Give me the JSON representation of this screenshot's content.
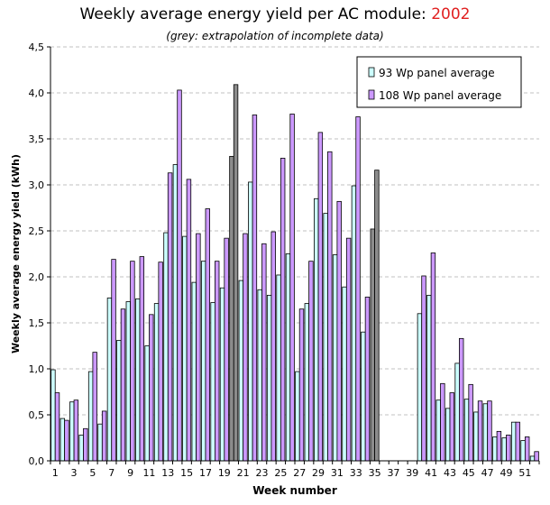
{
  "chart_data": {
    "type": "bar",
    "title": "Weekly average energy yield per AC module:",
    "title_year": "2002",
    "subtitle": "(grey: extrapolation of incomplete data)",
    "xlabel": "Week number",
    "ylabel": "Weekly average energy yield (kWh)",
    "ylim": [
      0,
      4.5
    ],
    "yticks": [
      "0,0",
      "0,5",
      "1,0",
      "1,5",
      "2,0",
      "2,5",
      "3,0",
      "3,5",
      "4,0",
      "4,5"
    ],
    "grid": "horizontal dashed",
    "legend_position": "top-right",
    "categories": [
      1,
      2,
      3,
      4,
      5,
      6,
      7,
      8,
      9,
      10,
      11,
      12,
      13,
      14,
      15,
      16,
      17,
      18,
      19,
      20,
      21,
      22,
      23,
      24,
      25,
      26,
      27,
      28,
      29,
      30,
      31,
      32,
      33,
      34,
      35,
      36,
      37,
      38,
      39,
      40,
      41,
      42,
      43,
      44,
      45,
      46,
      47,
      48,
      49,
      50,
      51,
      52
    ],
    "xtick_labels": [
      1,
      3,
      5,
      7,
      9,
      11,
      13,
      15,
      17,
      19,
      21,
      23,
      25,
      27,
      29,
      31,
      33,
      35,
      37,
      39,
      41,
      43,
      45,
      47,
      49,
      51
    ],
    "extrapolated_weeks": [
      20,
      35
    ],
    "colors": {
      "series1": "#ccffff",
      "series2": "#cc99ff",
      "extrapolated": "#8c8c8c",
      "title_year": "#e02020"
    },
    "series": [
      {
        "name": "93 Wp panel average",
        "values": [
          0.99,
          0.46,
          0.64,
          0.28,
          0.97,
          0.4,
          1.77,
          1.31,
          1.73,
          1.76,
          1.25,
          1.71,
          2.48,
          3.22,
          2.44,
          1.94,
          2.17,
          1.72,
          1.88,
          3.31,
          1.96,
          3.03,
          1.86,
          1.8,
          2.02,
          2.25,
          0.97,
          1.71,
          2.85,
          2.69,
          2.24,
          1.89,
          2.99,
          1.4,
          2.52,
          null,
          null,
          null,
          null,
          1.6,
          1.8,
          0.66,
          0.57,
          1.06,
          0.67,
          0.53,
          0.62,
          0.26,
          0.25,
          0.42,
          0.22,
          0.05
        ]
      },
      {
        "name": "108 Wp panel average",
        "values": [
          0.74,
          0.44,
          0.66,
          0.35,
          1.18,
          0.54,
          2.19,
          1.65,
          2.17,
          2.22,
          1.59,
          2.16,
          3.13,
          4.03,
          3.06,
          2.47,
          2.74,
          2.17,
          2.42,
          4.09,
          2.47,
          3.76,
          2.36,
          2.49,
          3.29,
          3.77,
          1.65,
          2.17,
          3.57,
          3.36,
          2.82,
          2.42,
          3.74,
          1.78,
          3.16,
          null,
          null,
          null,
          null,
          2.01,
          2.26,
          0.84,
          0.74,
          1.33,
          0.83,
          0.65,
          0.65,
          0.32,
          0.28,
          0.42,
          0.26,
          0.1
        ]
      }
    ]
  }
}
